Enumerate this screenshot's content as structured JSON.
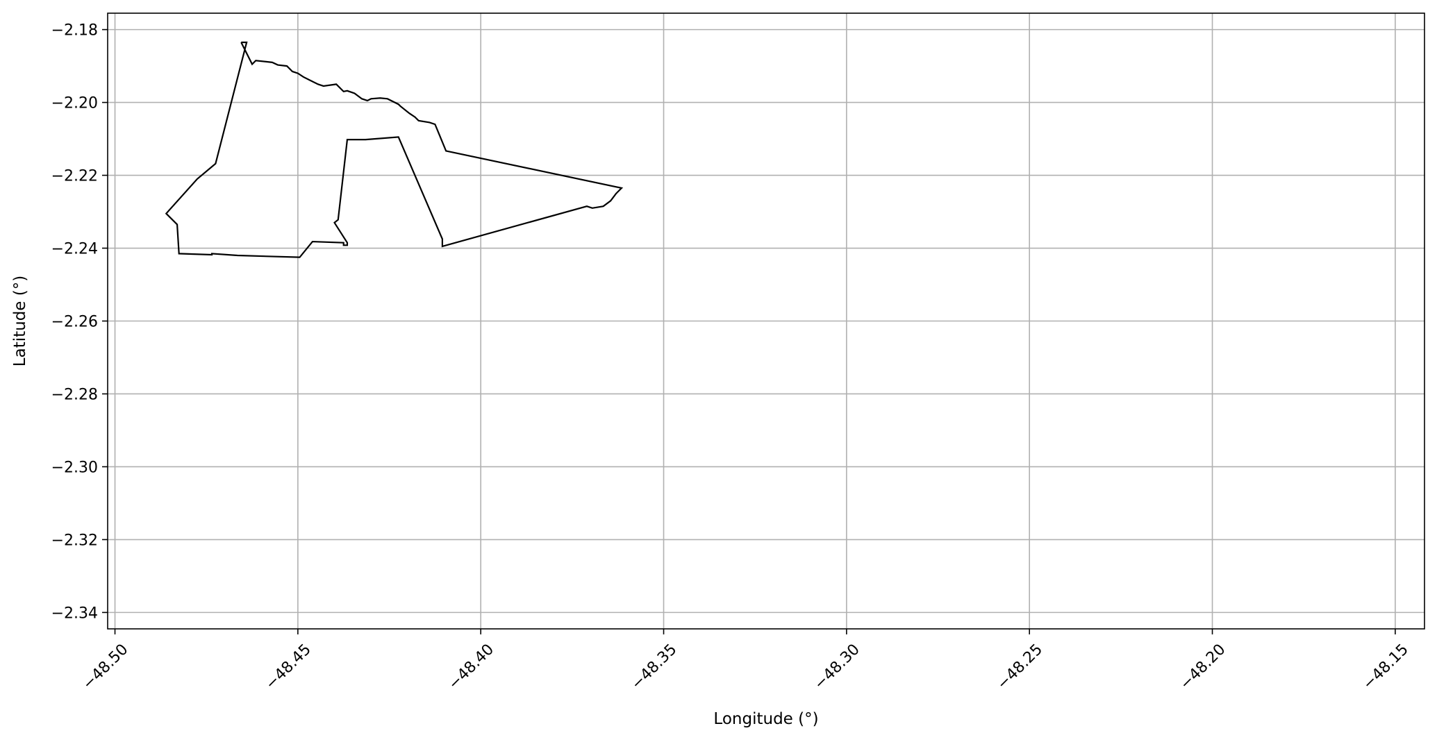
{
  "chart_data": {
    "type": "line",
    "title": "",
    "xlabel": "Longitude (°)",
    "ylabel": "Latitude (°)",
    "xlim": [
      -48.502,
      -48.142
    ],
    "ylim": [
      -2.3445,
      -2.1755
    ],
    "x_ticks": [
      -48.5,
      -48.45,
      -48.4,
      -48.35,
      -48.3,
      -48.25,
      -48.2,
      -48.15
    ],
    "x_tick_labels": [
      "−48.50",
      "−48.45",
      "−48.40",
      "−48.35",
      "−48.30",
      "−48.25",
      "−48.20",
      "−48.15"
    ],
    "y_ticks": [
      -2.18,
      -2.2,
      -2.22,
      -2.24,
      -2.26,
      -2.28,
      -2.3,
      -2.32,
      -2.34
    ],
    "y_tick_labels": [
      "−2.18",
      "−2.20",
      "−2.22",
      "−2.24",
      "−2.26",
      "−2.28",
      "−2.30",
      "−2.32",
      "−2.34"
    ],
    "grid": true,
    "colors": {
      "outline": "#000000",
      "grid": "#b0b0b0",
      "frame": "#000000"
    },
    "series": [
      {
        "x": [
          -48.4655,
          -48.4625,
          -48.4615,
          -48.457,
          -48.4555,
          -48.453,
          -48.4515,
          -48.45,
          -48.4485,
          -48.4465,
          -48.4445,
          -48.443,
          -48.4395,
          -48.438,
          -48.4375,
          -48.4365,
          -48.4345,
          -48.4325,
          -48.431,
          -48.43,
          -48.4275,
          -48.4255,
          -48.4225,
          -48.422,
          -48.4195,
          -48.418,
          -48.417,
          -48.414,
          -48.4125,
          -48.4095,
          -48.3615,
          -48.363,
          -48.3645,
          -48.3665,
          -48.3695,
          -48.371,
          -48.4105,
          -48.4105,
          -48.4225,
          -48.4315,
          -48.4365,
          -48.439,
          -48.44,
          -48.4365,
          -48.4365,
          -48.4375,
          -48.4375,
          -48.4375,
          -48.446,
          -48.4495,
          -48.4665,
          -48.4735,
          -48.4735,
          -48.4735,
          -48.4825,
          -48.483,
          -48.486,
          -48.4775,
          -48.4725,
          -48.464,
          -48.4655
        ],
        "y": [
          -2.1835,
          -2.1895,
          -2.1885,
          -2.189,
          -2.1897,
          -2.19,
          -2.1915,
          -2.192,
          -2.193,
          -2.194,
          -2.195,
          -2.1955,
          -2.195,
          -2.1965,
          -2.197,
          -2.1968,
          -2.1975,
          -2.199,
          -2.1995,
          -2.199,
          -2.1988,
          -2.199,
          -2.2005,
          -2.201,
          -2.203,
          -2.204,
          -2.205,
          -2.2055,
          -2.206,
          -2.2133,
          -2.2235,
          -2.225,
          -2.227,
          -2.2285,
          -2.229,
          -2.2285,
          -2.2395,
          -2.2375,
          -2.2095,
          -2.2102,
          -2.2102,
          -2.2322,
          -2.233,
          -2.2385,
          -2.2392,
          -2.2392,
          -2.2392,
          -2.2385,
          -2.2382,
          -2.2425,
          -2.242,
          -2.2415,
          -2.2418,
          -2.2418,
          -2.2415,
          -2.2335,
          -2.2305,
          -2.221,
          -2.2168,
          -2.1835,
          -2.1835
        ]
      }
    ]
  }
}
